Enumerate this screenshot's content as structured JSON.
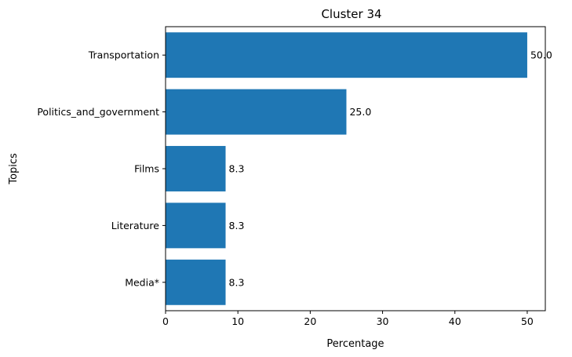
{
  "chart_data": {
    "type": "bar",
    "orientation": "horizontal",
    "title": "Cluster 34",
    "xlabel": "Percentage",
    "ylabel": "Topics",
    "categories": [
      "Transportation",
      "Politics_and_government",
      "Films",
      "Literature",
      "Media*"
    ],
    "values": [
      50.0,
      25.0,
      8.3,
      8.3,
      8.3
    ],
    "data_labels": [
      "50.0",
      "25.0",
      "8.3",
      "8.3",
      "8.3"
    ],
    "xlim": [
      0,
      52.5
    ],
    "xticks": [
      0,
      10,
      20,
      30,
      40,
      50
    ],
    "xtick_labels": [
      "0",
      "10",
      "20",
      "30",
      "40",
      "50"
    ],
    "bar_color": "#1f77b4",
    "grid": false,
    "legend": false
  }
}
